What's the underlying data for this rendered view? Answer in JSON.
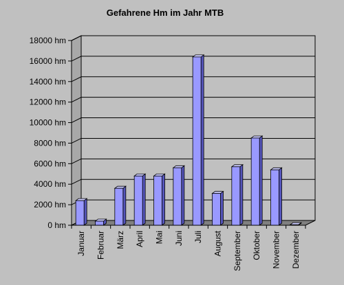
{
  "chart_data": {
    "type": "bar",
    "title": "Gefahrene Hm im Jahr MTB",
    "xlabel": "",
    "ylabel": "",
    "ylim": [
      0,
      18000
    ],
    "y_ticks": [
      "0 hm",
      "2000 hm",
      "4000 hm",
      "6000 hm",
      "8000 hm",
      "10000 hm",
      "12000 hm",
      "14000 hm",
      "16000 hm",
      "18000 hm"
    ],
    "y_tick_values": [
      0,
      2000,
      4000,
      6000,
      8000,
      10000,
      12000,
      14000,
      16000,
      18000
    ],
    "categories": [
      "Januar",
      "Februar",
      "März",
      "April",
      "Mai",
      "Juni",
      "Juli",
      "August",
      "September",
      "Oktober",
      "November",
      "Dezember"
    ],
    "values": [
      2400,
      400,
      3600,
      4800,
      4800,
      5600,
      16400,
      3100,
      5700,
      8500,
      5400,
      50
    ],
    "grid": true,
    "legend": "none",
    "style": "3d-bar",
    "colors": {
      "bar_face": "#9999ff",
      "bar_side": "#5555bb",
      "bar_top": "#ccccff",
      "bar_edge": "#000000",
      "wall": "#c0c0c0",
      "floor": "#808080",
      "gridline": "#000000"
    }
  }
}
